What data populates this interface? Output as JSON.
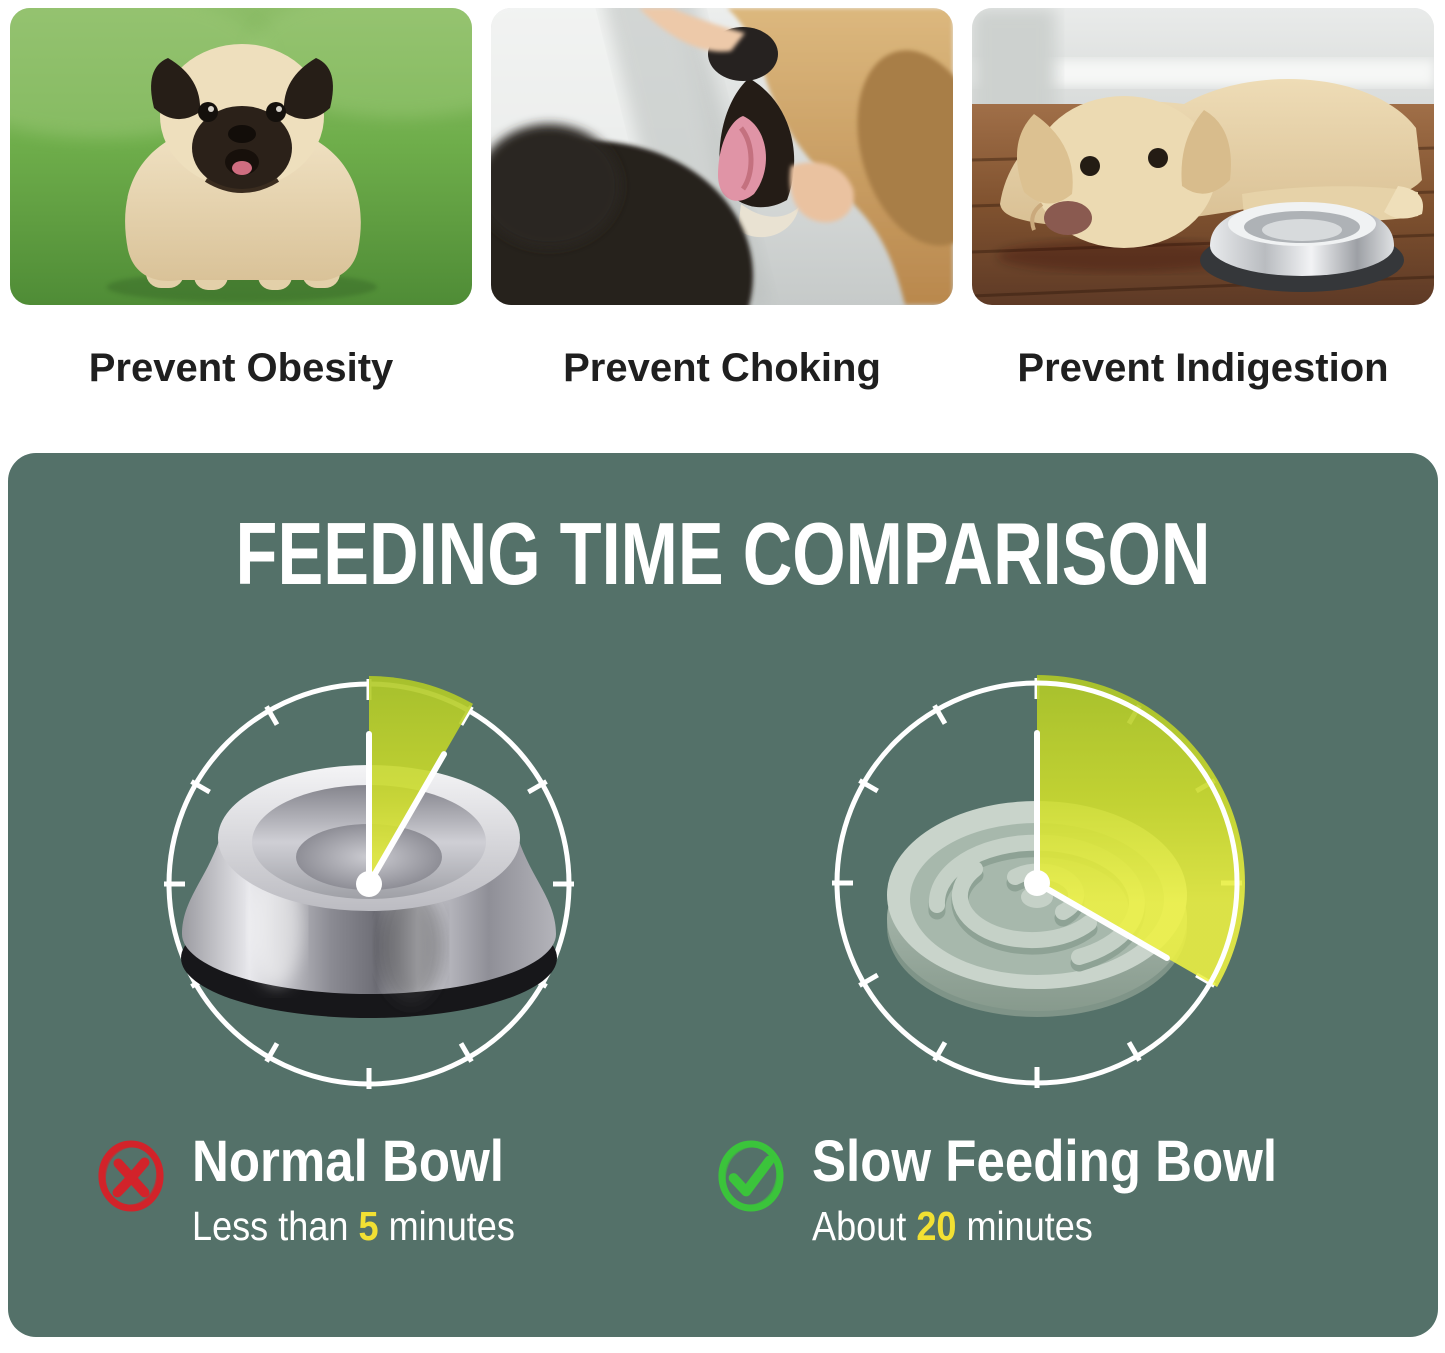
{
  "benefits": {
    "items": [
      {
        "caption": "Prevent Obesity"
      },
      {
        "caption": "Prevent Choking"
      },
      {
        "caption": "Prevent Indigestion"
      }
    ]
  },
  "comparison": {
    "title": "FEEDING TIME COMPARISON",
    "items": [
      {
        "name": "Normal Bowl",
        "time_prefix": "Less than ",
        "time_value": "5",
        "time_suffix": " minutes",
        "minutes": 5,
        "wedge_degrees": 30,
        "verdict": "negative",
        "icon": "x-icon",
        "bowl": "stainless-steel-bowl"
      },
      {
        "name": "Slow Feeding Bowl",
        "time_prefix": "About ",
        "time_value": "20",
        "time_suffix": " minutes",
        "minutes": 20,
        "wedge_degrees": 120,
        "verdict": "positive",
        "icon": "check-icon",
        "bowl": "slow-feeder-maze-bowl"
      }
    ]
  },
  "colors": {
    "panel_green": "#547169",
    "wedge_green": "#c3d435",
    "accent_yellow": "#f2e033",
    "negative_red": "#d2232a",
    "positive_green": "#3bc43b",
    "caption_text": "#1f1f1f",
    "clock_white": "#ffffff"
  }
}
